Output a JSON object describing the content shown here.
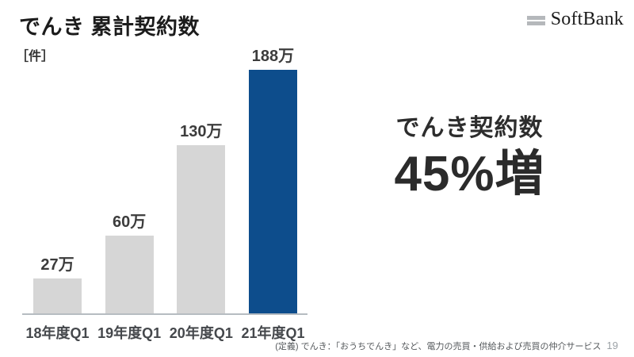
{
  "slide": {
    "title": "でんき 累計契約数",
    "unit_label": "［件］",
    "footnote": "(定義) でんき：「おうちでんき」など、電力の売買・供給および売買の仲介サービス",
    "page_number": "19"
  },
  "logo": {
    "brand": "SoftBank"
  },
  "highlight": {
    "caption": "でんき契約数",
    "value": "45%増"
  },
  "chart_data": {
    "type": "bar",
    "title": "でんき 累計契約数",
    "ylabel": "件",
    "categories": [
      "18年度Q1",
      "19年度Q1",
      "20年度Q1",
      "21年度Q1"
    ],
    "values": [
      27,
      60,
      130,
      188
    ],
    "value_unit": "万",
    "value_labels": [
      "27万",
      "60万",
      "130万",
      "188万"
    ],
    "ylim": [
      0,
      188
    ],
    "grid": false,
    "legend": false,
    "bar_colors": [
      "#d6d6d6",
      "#d6d6d6",
      "#d6d6d6",
      "#0d4d8c"
    ],
    "highlight_index": 3
  },
  "colors": {
    "accent_blue": "#0d4d8c",
    "bar_gray": "#d6d6d6",
    "baseline_gray": "#b6bcc1",
    "logo_gray": "#b5b8bb",
    "text_dark": "#2b2b2b"
  }
}
